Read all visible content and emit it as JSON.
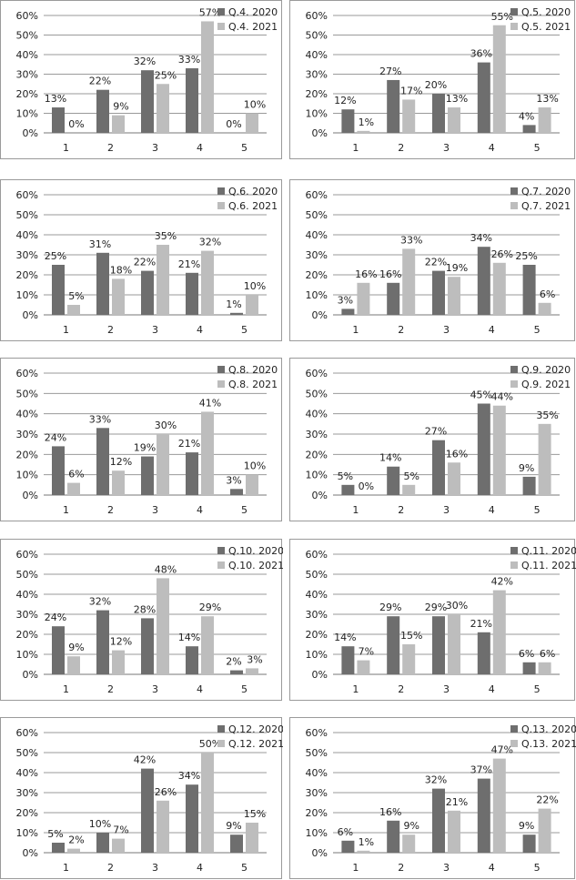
{
  "colors": {
    "y2020": "#6e6e6e",
    "y2021": "#bdbdbd",
    "grid": "#9a9a9a",
    "axis": "#777777"
  },
  "chart_data": [
    {
      "type": "bar",
      "categories": [
        "1",
        "2",
        "3",
        "4",
        "5"
      ],
      "ylim": [
        0,
        60
      ],
      "yticks": [
        "0%",
        "10%",
        "20%",
        "30%",
        "40%",
        "50%",
        "60%"
      ],
      "series": [
        {
          "name": "Q.4. 2020",
          "values": [
            13,
            22,
            32,
            33,
            0
          ],
          "labels": [
            "13%",
            "22%",
            "32%",
            "33%",
            "0%"
          ]
        },
        {
          "name": "Q.4. 2021",
          "values": [
            0,
            9,
            25,
            57,
            10
          ],
          "labels": [
            "0%",
            "9%",
            "25%",
            "57%",
            "10%"
          ]
        }
      ]
    },
    {
      "type": "bar",
      "categories": [
        "1",
        "2",
        "3",
        "4",
        "5"
      ],
      "ylim": [
        0,
        60
      ],
      "yticks": [
        "0%",
        "10%",
        "20%",
        "30%",
        "40%",
        "50%",
        "60%"
      ],
      "series": [
        {
          "name": "Q.5. 2020",
          "values": [
            12,
            27,
            20,
            36,
            4
          ],
          "labels": [
            "12%",
            "27%",
            "20%",
            "36%",
            "4%"
          ]
        },
        {
          "name": "Q.5. 2021",
          "values": [
            1,
            17,
            13,
            55,
            13
          ],
          "labels": [
            "1%",
            "17%",
            "13%",
            "55%",
            "13%"
          ]
        }
      ]
    },
    {
      "type": "bar",
      "categories": [
        "1",
        "2",
        "3",
        "4",
        "5"
      ],
      "ylim": [
        0,
        60
      ],
      "yticks": [
        "0%",
        "10%",
        "20%",
        "30%",
        "40%",
        "50%",
        "60%"
      ],
      "series": [
        {
          "name": "Q.6. 2020",
          "values": [
            25,
            31,
            22,
            21,
            1
          ],
          "labels": [
            "25%",
            "31%",
            "22%",
            "21%",
            "1%"
          ]
        },
        {
          "name": "Q.6. 2021",
          "values": [
            5,
            18,
            35,
            32,
            10
          ],
          "labels": [
            "5%",
            "18%",
            "35%",
            "32%",
            "10%"
          ]
        }
      ]
    },
    {
      "type": "bar",
      "categories": [
        "1",
        "2",
        "3",
        "4",
        "5"
      ],
      "ylim": [
        0,
        60
      ],
      "yticks": [
        "0%",
        "10%",
        "20%",
        "30%",
        "40%",
        "50%",
        "60%"
      ],
      "series": [
        {
          "name": "Q.7. 2020",
          "values": [
            3,
            16,
            22,
            34,
            25
          ],
          "labels": [
            "3%",
            "16%",
            "22%",
            "34%",
            "25%"
          ]
        },
        {
          "name": "Q.7. 2021",
          "values": [
            16,
            33,
            19,
            26,
            6
          ],
          "labels": [
            "16%",
            "33%",
            "19%",
            "26%",
            "6%"
          ]
        }
      ]
    },
    {
      "type": "bar",
      "categories": [
        "1",
        "2",
        "3",
        "4",
        "5"
      ],
      "ylim": [
        0,
        60
      ],
      "yticks": [
        "0%",
        "10%",
        "20%",
        "30%",
        "40%",
        "50%",
        "60%"
      ],
      "series": [
        {
          "name": "Q.8. 2020",
          "values": [
            24,
            33,
            19,
            21,
            3
          ],
          "labels": [
            "24%",
            "33%",
            "19%",
            "21%",
            "3%"
          ]
        },
        {
          "name": "Q.8. 2021",
          "values": [
            6,
            12,
            30,
            41,
            10
          ],
          "labels": [
            "6%",
            "12%",
            "30%",
            "41%",
            "10%"
          ]
        }
      ]
    },
    {
      "type": "bar",
      "categories": [
        "1",
        "2",
        "3",
        "4",
        "5"
      ],
      "ylim": [
        0,
        60
      ],
      "yticks": [
        "0%",
        "10%",
        "20%",
        "30%",
        "40%",
        "50%",
        "60%"
      ],
      "series": [
        {
          "name": "Q.9. 2020",
          "values": [
            5,
            14,
            27,
            45,
            9
          ],
          "labels": [
            "5%",
            "14%",
            "27%",
            "45%",
            "9%"
          ]
        },
        {
          "name": "Q.9. 2021",
          "values": [
            0,
            5,
            16,
            44,
            35
          ],
          "labels": [
            "0%",
            "5%",
            "16%",
            "44%",
            "35%"
          ]
        }
      ]
    },
    {
      "type": "bar",
      "categories": [
        "1",
        "2",
        "3",
        "4",
        "5"
      ],
      "ylim": [
        0,
        60
      ],
      "yticks": [
        "0%",
        "10%",
        "20%",
        "30%",
        "40%",
        "50%",
        "60%"
      ],
      "series": [
        {
          "name": "Q.10. 2020",
          "values": [
            24,
            32,
            28,
            14,
            2
          ],
          "labels": [
            "24%",
            "32%",
            "28%",
            "14%",
            "2%"
          ]
        },
        {
          "name": "Q.10. 2021",
          "values": [
            9,
            12,
            48,
            29,
            3
          ],
          "labels": [
            "9%",
            "12%",
            "48%",
            "29%",
            "3%"
          ]
        }
      ]
    },
    {
      "type": "bar",
      "categories": [
        "1",
        "2",
        "3",
        "4",
        "5"
      ],
      "ylim": [
        0,
        60
      ],
      "yticks": [
        "0%",
        "10%",
        "20%",
        "30%",
        "40%",
        "50%",
        "60%"
      ],
      "series": [
        {
          "name": "Q.11. 2020",
          "values": [
            14,
            29,
            29,
            21,
            6
          ],
          "labels": [
            "14%",
            "29%",
            "29%",
            "21%",
            "6%"
          ]
        },
        {
          "name": "Q.11. 2021",
          "values": [
            7,
            15,
            30,
            42,
            6
          ],
          "labels": [
            "7%",
            "15%",
            "30%",
            "42%",
            "6%"
          ]
        }
      ]
    },
    {
      "type": "bar",
      "categories": [
        "1",
        "2",
        "3",
        "4",
        "5"
      ],
      "ylim": [
        0,
        60
      ],
      "yticks": [
        "0%",
        "10%",
        "20%",
        "30%",
        "40%",
        "50%",
        "60%"
      ],
      "series": [
        {
          "name": "Q.12. 2020",
          "values": [
            5,
            10,
            42,
            34,
            9
          ],
          "labels": [
            "5%",
            "10%",
            "42%",
            "34%",
            "9%"
          ]
        },
        {
          "name": "Q.12. 2021",
          "values": [
            2,
            7,
            26,
            50,
            15
          ],
          "labels": [
            "2%",
            "7%",
            "26%",
            "50%",
            "15%"
          ]
        }
      ]
    },
    {
      "type": "bar",
      "categories": [
        "1",
        "2",
        "3",
        "4",
        "5"
      ],
      "ylim": [
        0,
        60
      ],
      "yticks": [
        "0%",
        "10%",
        "20%",
        "30%",
        "40%",
        "50%",
        "60%"
      ],
      "series": [
        {
          "name": "Q.13. 2020",
          "values": [
            6,
            16,
            32,
            37,
            9
          ],
          "labels": [
            "6%",
            "16%",
            "32%",
            "37%",
            "9%"
          ]
        },
        {
          "name": "Q.13. 2021",
          "values": [
            1,
            9,
            21,
            47,
            22
          ],
          "labels": [
            "1%",
            "9%",
            "21%",
            "47%",
            "22%"
          ]
        }
      ]
    }
  ]
}
